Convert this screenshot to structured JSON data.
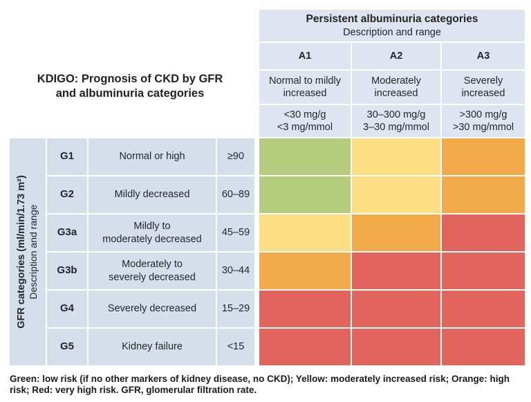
{
  "title": "KDIGO: Prognosis of CKD by GFR\nand albuminuria categories",
  "albuminuria": {
    "title": "Persistent albuminuria categories",
    "subtitle": "Description and range",
    "categories": [
      {
        "code": "A1",
        "description": "Normal to mildly\nincreased",
        "range": "<30 mg/g\n<3 mg/mmol"
      },
      {
        "code": "A2",
        "description": "Moderately\nincreased",
        "range": "30–300 mg/g\n3–30 mg/mmol"
      },
      {
        "code": "A3",
        "description": "Severely\nincreased",
        "range": ">300 mg/g\n>30 mg/mmol"
      }
    ]
  },
  "gfr": {
    "axis_title": "GFR categories (ml/min/1.73 m²)",
    "axis_subtitle": "Description and range",
    "categories": [
      {
        "code": "G1",
        "description": "Normal or high",
        "range": "≥90"
      },
      {
        "code": "G2",
        "description": "Mildly decreased",
        "range": "60–89"
      },
      {
        "code": "G3a",
        "description": "Mildly to\nmoderately decreased",
        "range": "45–59"
      },
      {
        "code": "G3b",
        "description": "Moderately to\nseverely decreased",
        "range": "30–44"
      },
      {
        "code": "G4",
        "description": "Severely decreased",
        "range": "15–29"
      },
      {
        "code": "G5",
        "description": "Kidney failure",
        "range": "<15"
      }
    ]
  },
  "caption": "Green: low risk (if no other markers of kidney disease, no CKD); Yellow: moderately increased risk; Orange: high\nrisk; Red: very high risk. GFR, glomerular filtration rate.",
  "colors": {
    "green": "#b5cb7d",
    "yellow": "#fcdf85",
    "orange": "#f1a94a",
    "red": "#e1655c",
    "header_blue": "#dee4f0",
    "panel_blue": "#d5dfec",
    "text": "#262626"
  },
  "chart_data": {
    "type": "heatmap",
    "title": "KDIGO: Prognosis of CKD by GFR and albuminuria categories",
    "x_axis": {
      "label": "Persistent albuminuria categories — Description and range",
      "categories": [
        "A1",
        "A2",
        "A3"
      ]
    },
    "y_axis": {
      "label": "GFR categories (ml/min/1.73 m²) — Description and range",
      "categories": [
        "G1",
        "G2",
        "G3a",
        "G3b",
        "G4",
        "G5"
      ]
    },
    "cells": [
      [
        "green",
        "yellow",
        "orange"
      ],
      [
        "green",
        "yellow",
        "orange"
      ],
      [
        "yellow",
        "orange",
        "red"
      ],
      [
        "orange",
        "red",
        "red"
      ],
      [
        "red",
        "red",
        "red"
      ],
      [
        "red",
        "red",
        "red"
      ]
    ],
    "risk_levels": {
      "green": "low risk (if no other markers of kidney disease, no CKD)",
      "yellow": "moderately increased risk",
      "orange": "high risk",
      "red": "very high risk"
    },
    "legend_position": "bottom-caption",
    "grid": false
  }
}
